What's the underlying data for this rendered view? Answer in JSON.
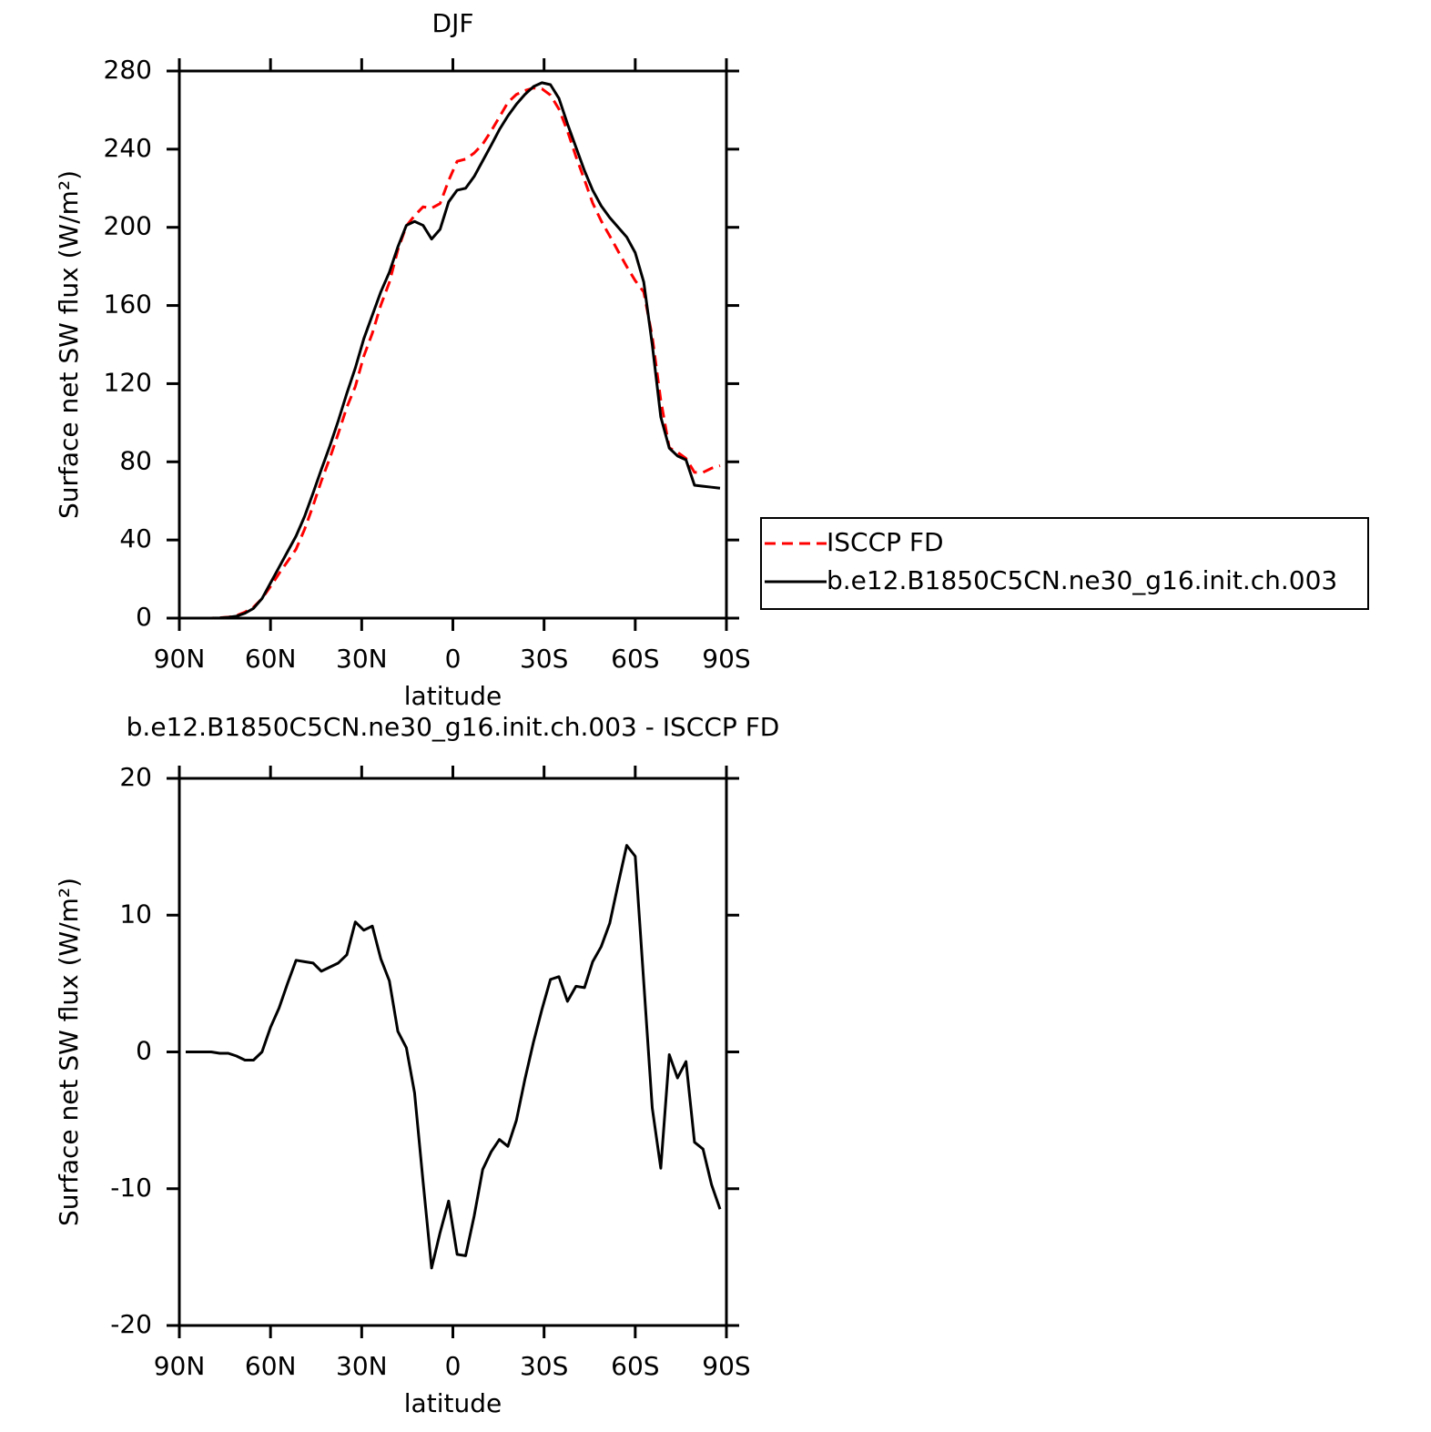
{
  "chart_data": [
    {
      "type": "line",
      "title": "DJF",
      "xlabel": "latitude",
      "ylabel": "Surface net SW flux (W/m²)",
      "x": [
        87.9,
        85.1,
        82.3,
        79.5,
        76.7,
        73.9,
        71.2,
        68.4,
        65.6,
        62.8,
        60.0,
        57.2,
        54.4,
        51.6,
        48.8,
        46.0,
        43.3,
        40.5,
        37.7,
        34.9,
        32.1,
        29.3,
        26.5,
        23.7,
        20.9,
        18.1,
        15.3,
        12.6,
        9.8,
        7.0,
        4.2,
        1.4,
        -1.4,
        -4.2,
        -7.0,
        -9.8,
        -12.6,
        -15.3,
        -18.1,
        -20.9,
        -23.7,
        -26.5,
        -29.3,
        -32.1,
        -34.9,
        -37.7,
        -40.5,
        -43.3,
        -46.0,
        -48.8,
        -51.6,
        -54.4,
        -57.2,
        -60.0,
        -62.8,
        -65.6,
        -68.4,
        -71.2,
        -73.9,
        -76.7,
        -79.5,
        -82.3,
        -85.1,
        -87.9
      ],
      "series": [
        {
          "name": "ISCCP FD",
          "color": "#ff0000",
          "line_style": "dashed",
          "values": [
            0,
            0,
            0,
            0,
            0.2,
            0.5,
            1.3,
            3.1,
            5.6,
            10,
            16.2,
            22.8,
            29,
            35.3,
            45.4,
            57.5,
            70.1,
            81.8,
            94.5,
            107.9,
            118.5,
            134.1,
            145.8,
            160.2,
            171.8,
            188.5,
            200.7,
            206,
            210.5,
            209.8,
            212.2,
            223.9,
            233.8,
            234.9,
            238,
            242.6,
            249.3,
            256.4,
            263.9,
            268,
            270,
            271.3,
            270.9,
            267.7,
            260.5,
            249.3,
            236.2,
            224.3,
            212.4,
            203.3,
            195.6,
            187.7,
            179.9,
            172.7,
            166.9,
            144.1,
            111.5,
            87.2,
            84.9,
            81.7,
            74.6,
            74.6,
            76.7,
            78
          ]
        },
        {
          "name": "b.e12.B1850C5CN.ne30_g16.init.ch.003",
          "color": "#000000",
          "line_style": "solid",
          "values": [
            0,
            0,
            0,
            0,
            0.1,
            0.4,
            1,
            2.5,
            5,
            10,
            18,
            26,
            34,
            42,
            52,
            64,
            76,
            88,
            101,
            115,
            128,
            143,
            155,
            167,
            177,
            190,
            201,
            203,
            201,
            194,
            199,
            213,
            219,
            220,
            226,
            234,
            242,
            250,
            257,
            263,
            268,
            272,
            274,
            273,
            266,
            253,
            241,
            229,
            219,
            211,
            205,
            200,
            195,
            187,
            172,
            140,
            103,
            87,
            83,
            81,
            68,
            67.5,
            67,
            66.5
          ]
        }
      ],
      "xlim": [
        90,
        -90
      ],
      "xticks": [
        {
          "value": 90,
          "label": "90N"
        },
        {
          "value": 60,
          "label": "60N"
        },
        {
          "value": 30,
          "label": "30N"
        },
        0,
        {
          "value": -30,
          "label": "30S"
        },
        {
          "value": -60,
          "label": "60S"
        },
        {
          "value": -90,
          "label": "90S"
        }
      ],
      "ylim": [
        0,
        280
      ],
      "yticks": [
        0,
        40,
        80,
        120,
        160,
        200,
        240,
        280
      ],
      "legend": "outside-right"
    },
    {
      "type": "line",
      "title": "b.e12.B1850C5CN.ne30_g16.init.ch.003 - ISCCP FD",
      "xlabel": "latitude",
      "ylabel": "Surface net SW flux (W/m²)",
      "x": [
        87.9,
        85.1,
        82.3,
        79.5,
        76.7,
        73.9,
        71.2,
        68.4,
        65.6,
        62.8,
        60.0,
        57.2,
        54.4,
        51.6,
        48.8,
        46.0,
        43.3,
        40.5,
        37.7,
        34.9,
        32.1,
        29.3,
        26.5,
        23.7,
        20.9,
        18.1,
        15.3,
        12.6,
        9.8,
        7.0,
        4.2,
        1.4,
        -1.4,
        -4.2,
        -7.0,
        -9.8,
        -12.6,
        -15.3,
        -18.1,
        -20.9,
        -23.7,
        -26.5,
        -29.3,
        -32.1,
        -34.9,
        -37.7,
        -40.5,
        -43.3,
        -46.0,
        -48.8,
        -51.6,
        -54.4,
        -57.2,
        -60.0,
        -62.8,
        -65.6,
        -68.4,
        -71.2,
        -73.9,
        -76.7,
        -79.5,
        -82.3,
        -85.1,
        -87.9
      ],
      "color": "#000000",
      "values": [
        0,
        0,
        0,
        0,
        -0.1,
        -0.1,
        -0.3,
        -0.6,
        -0.6,
        0,
        1.8,
        3.2,
        5.0,
        6.7,
        6.6,
        6.5,
        5.9,
        6.2,
        6.5,
        7.1,
        9.5,
        8.9,
        9.2,
        6.8,
        5.2,
        1.5,
        0.3,
        -3.0,
        -9.5,
        -15.8,
        -13.2,
        -10.9,
        -14.8,
        -14.9,
        -12.0,
        -8.6,
        -7.3,
        -6.4,
        -6.9,
        -5.0,
        -2.0,
        0.7,
        3.1,
        5.3,
        5.5,
        3.7,
        4.8,
        4.7,
        6.6,
        7.7,
        9.4,
        12.3,
        15.1,
        14.3,
        5.1,
        -4.1,
        -8.5,
        -0.2,
        -1.9,
        -0.7,
        -6.6,
        -7.1,
        -9.7,
        -11.5
      ],
      "xlim": [
        90,
        -90
      ],
      "xticks": [
        {
          "value": 90,
          "label": "90N"
        },
        {
          "value": 60,
          "label": "60N"
        },
        {
          "value": 30,
          "label": "30N"
        },
        0,
        {
          "value": -30,
          "label": "30S"
        },
        {
          "value": -60,
          "label": "60S"
        },
        {
          "value": -90,
          "label": "90S"
        }
      ],
      "ylim": [
        -20,
        20
      ],
      "yticks": [
        -20,
        -10,
        0,
        10,
        20
      ]
    }
  ]
}
